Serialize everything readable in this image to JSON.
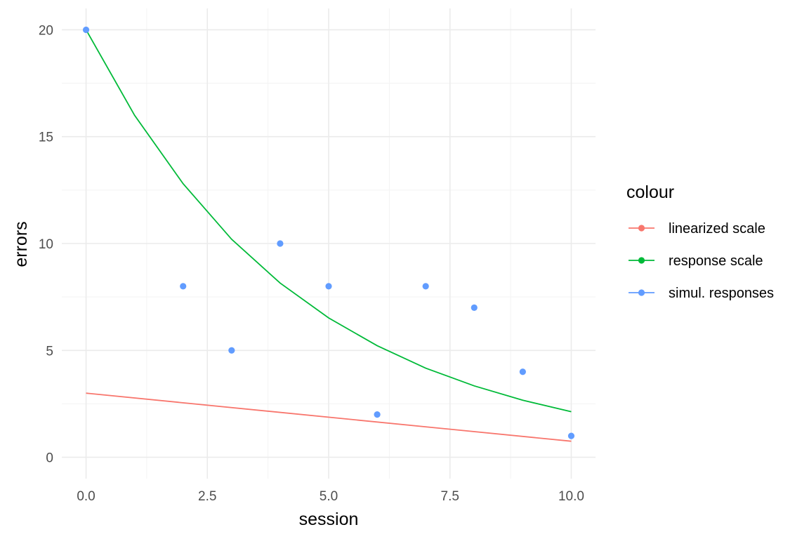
{
  "chart_data": {
    "type": "line",
    "xlabel": "session",
    "ylabel": "errors",
    "xlim": [
      -0.5,
      10.5
    ],
    "ylim": [
      -1,
      21
    ],
    "x_ticks": [
      0,
      2.5,
      5,
      7.5,
      10
    ],
    "x_tick_labels": [
      "0.0",
      "2.5",
      "5.0",
      "7.5",
      "10.0"
    ],
    "y_ticks": [
      0,
      5,
      10,
      15,
      20
    ],
    "y_tick_labels": [
      "0",
      "5",
      "10",
      "15",
      "20"
    ],
    "grid": true,
    "legend": {
      "title": "colour",
      "placement": "right",
      "entries": [
        {
          "label": "linearized scale",
          "color": "#F8766D"
        },
        {
          "label": "response scale",
          "color": "#00BA38"
        },
        {
          "label": "simul. responses",
          "color": "#619CFF"
        }
      ]
    },
    "series": [
      {
        "name": "linearized scale",
        "kind": "line",
        "color": "#F8766D",
        "x": [
          0,
          10
        ],
        "y": [
          3.0,
          0.75
        ]
      },
      {
        "name": "response scale",
        "kind": "line",
        "color": "#00BA38",
        "x": [
          0,
          1,
          2,
          3,
          4,
          5,
          6,
          7,
          8,
          9,
          10
        ],
        "y": [
          20.0,
          16.0,
          12.8,
          10.2,
          8.15,
          6.52,
          5.22,
          4.17,
          3.34,
          2.67,
          2.13
        ]
      },
      {
        "name": "simul. responses",
        "kind": "points",
        "color": "#619CFF",
        "x": [
          0,
          2,
          3,
          4,
          5,
          6,
          7,
          8,
          9,
          10
        ],
        "y": [
          20,
          8,
          5,
          10,
          8,
          2,
          8,
          7,
          4,
          1
        ]
      }
    ]
  }
}
